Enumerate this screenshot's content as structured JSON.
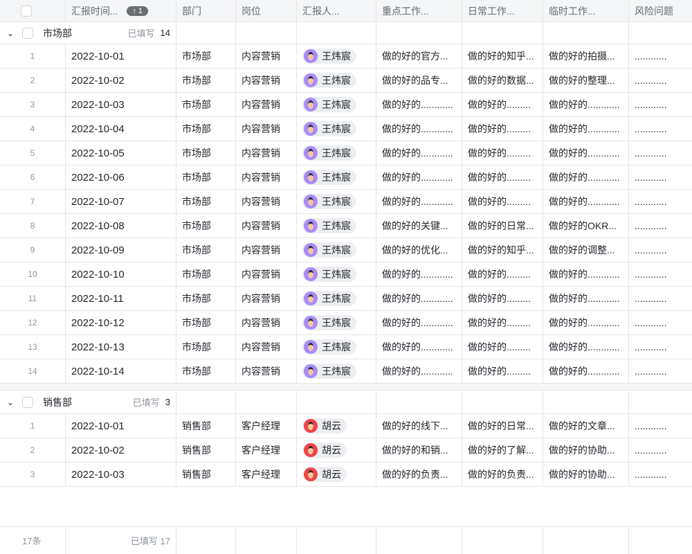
{
  "header": {
    "columns": [
      "汇报时间...",
      "部门",
      "岗位",
      "汇报人...",
      "重点工作...",
      "日常工作...",
      "临时工作...",
      "风险问题"
    ],
    "sort_badge": "↑ 1"
  },
  "colors": {
    "avatar_wang": "#a78bfa",
    "avatar_hu": "#ef4444"
  },
  "groups": [
    {
      "name": "市场部",
      "filled_label": "已填写",
      "count": "14",
      "rows": [
        [
          "1",
          "2022-10-01",
          "市场部",
          "内容营销",
          "王炜宸",
          "做的好的官方...",
          "做的好的知乎...",
          "做的好的拍摄...",
          "............"
        ],
        [
          "2",
          "2022-10-02",
          "市场部",
          "内容营销",
          "王炜宸",
          "做的好的品专...",
          "做的好的数据...",
          "做的好的整理...",
          "............"
        ],
        [
          "3",
          "2022-10-03",
          "市场部",
          "内容营销",
          "王炜宸",
          "做的好的............",
          "做的好的.........",
          "做的好的............",
          "............"
        ],
        [
          "4",
          "2022-10-04",
          "市场部",
          "内容营销",
          "王炜宸",
          "做的好的............",
          "做的好的.........",
          "做的好的............",
          "............"
        ],
        [
          "5",
          "2022-10-05",
          "市场部",
          "内容营销",
          "王炜宸",
          "做的好的............",
          "做的好的.........",
          "做的好的............",
          "............"
        ],
        [
          "6",
          "2022-10-06",
          "市场部",
          "内容营销",
          "王炜宸",
          "做的好的............",
          "做的好的.........",
          "做的好的............",
          "............"
        ],
        [
          "7",
          "2022-10-07",
          "市场部",
          "内容营销",
          "王炜宸",
          "做的好的............",
          "做的好的.........",
          "做的好的............",
          "............"
        ],
        [
          "8",
          "2022-10-08",
          "市场部",
          "内容营销",
          "王炜宸",
          "做的好的关键...",
          "做的好的日常...",
          "做的好的OKR...",
          "............"
        ],
        [
          "9",
          "2022-10-09",
          "市场部",
          "内容营销",
          "王炜宸",
          "做的好的优化...",
          "做的好的知乎...",
          "做的好的调整...",
          "............"
        ],
        [
          "10",
          "2022-10-10",
          "市场部",
          "内容营销",
          "王炜宸",
          "做的好的............",
          "做的好的.........",
          "做的好的............",
          "............"
        ],
        [
          "11",
          "2022-10-11",
          "市场部",
          "内容营销",
          "王炜宸",
          "做的好的............",
          "做的好的.........",
          "做的好的............",
          "............"
        ],
        [
          "12",
          "2022-10-12",
          "市场部",
          "内容营销",
          "王炜宸",
          "做的好的............",
          "做的好的.........",
          "做的好的............",
          "............"
        ],
        [
          "13",
          "2022-10-13",
          "市场部",
          "内容营销",
          "王炜宸",
          "做的好的............",
          "做的好的.........",
          "做的好的............",
          "............"
        ],
        [
          "14",
          "2022-10-14",
          "市场部",
          "内容营销",
          "王炜宸",
          "做的好的............",
          "做的好的.........",
          "做的好的............",
          "............"
        ]
      ]
    },
    {
      "name": "销售部",
      "filled_label": "已填写",
      "count": "3",
      "rows": [
        [
          "1",
          "2022-10-01",
          "销售部",
          "客户经理",
          "胡云",
          "做的好的线下...",
          "做的好的日常...",
          "做的好的文章...",
          "............"
        ],
        [
          "2",
          "2022-10-02",
          "销售部",
          "客户经理",
          "胡云",
          "做的好的和销...",
          "做的好的了解...",
          "做的好的协助...",
          "............"
        ],
        [
          "3",
          "2022-10-03",
          "销售部",
          "客户经理",
          "胡云",
          "做的好的负责...",
          "做的好的负责...",
          "做的好的协助...",
          "............"
        ]
      ]
    }
  ],
  "footer": {
    "total": "17条",
    "filled": "已填写 17"
  }
}
